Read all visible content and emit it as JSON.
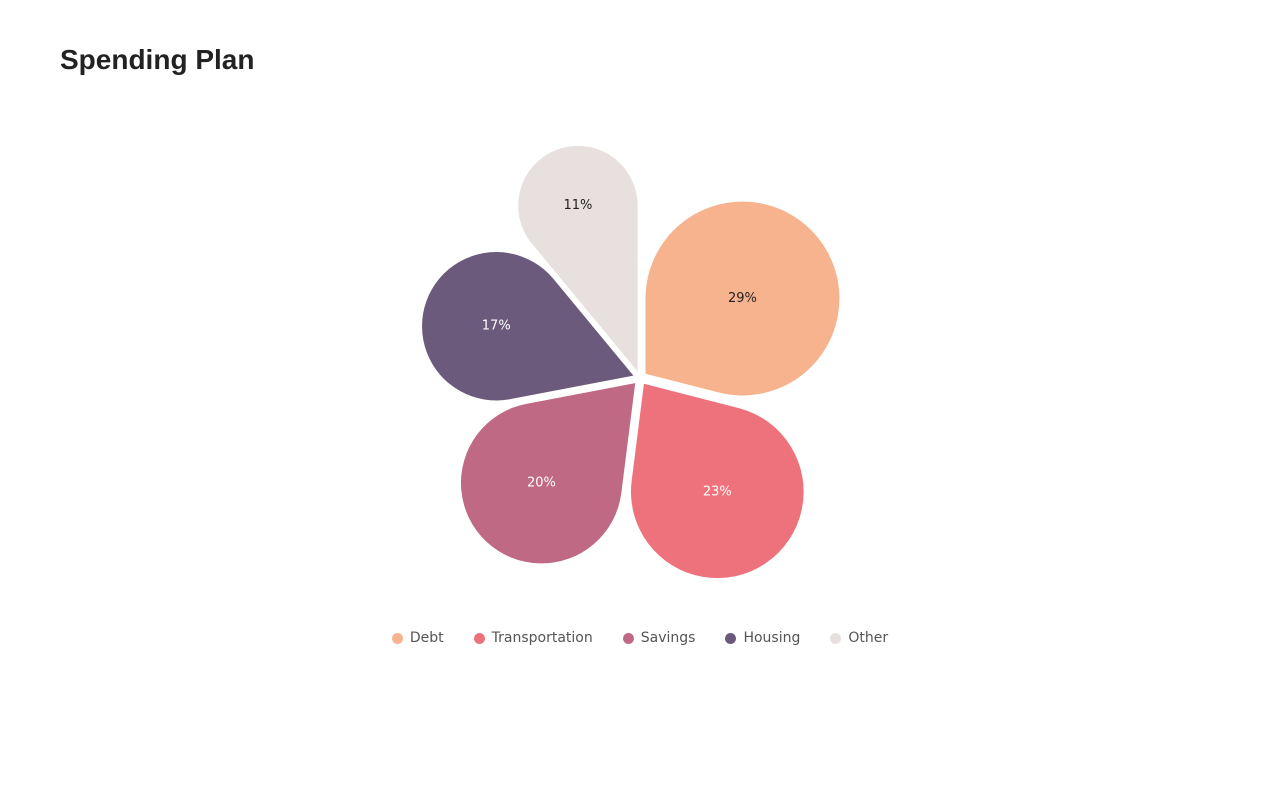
{
  "chart_data": {
    "type": "pie",
    "title": "Spending Plan",
    "categories": [
      "Debt",
      "Transportation",
      "Savings",
      "Housing",
      "Other"
    ],
    "values": [
      29,
      23,
      20,
      17,
      11
    ],
    "value_labels": [
      "29%",
      "23%",
      "20%",
      "17%",
      "11%"
    ],
    "colors": [
      "#f7b28e",
      "#ee727b",
      "#c06984",
      "#6c5a7d",
      "#e8e0df"
    ]
  }
}
